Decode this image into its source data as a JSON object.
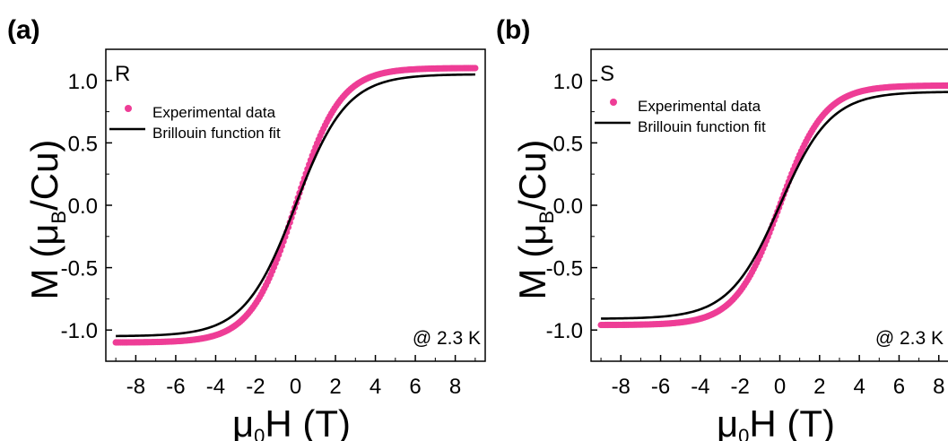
{
  "chart_data": [
    {
      "panel_label": "(a)",
      "sample": "R",
      "type": "line",
      "xlabel_prefix": "μ",
      "xlabel_sub": "0",
      "xlabel_suffix": "H (T)",
      "ylabel_prefix": "M (μ",
      "ylabel_sub": "B",
      "ylabel_suffix": "/Cu)",
      "xlim": [
        -9.5,
        9.5
      ],
      "ylim": [
        -1.25,
        1.25
      ],
      "xticks": [
        -8,
        -6,
        -4,
        -2,
        0,
        2,
        4,
        6,
        8
      ],
      "yticks": [
        -1.0,
        -0.5,
        0.0,
        0.5,
        1.0
      ],
      "annotation": "@ 2.3 K",
      "series": [
        {
          "name": "Experimental data",
          "style": "points",
          "color": "#ee3d96",
          "saturation": 1.1,
          "half_field": 2.0
        },
        {
          "name": "Brillouin function fit",
          "style": "line",
          "color": "#000000",
          "saturation": 1.05,
          "half_field": 2.3
        }
      ]
    },
    {
      "panel_label": "(b)",
      "sample": "S",
      "type": "line",
      "xlabel_prefix": "μ",
      "xlabel_sub": "0",
      "xlabel_suffix": "H (T)",
      "ylabel_prefix": "M (μ",
      "ylabel_sub": "B",
      "ylabel_suffix": "/Cu)",
      "xlim": [
        -9.5,
        9.5
      ],
      "ylim": [
        -1.25,
        1.25
      ],
      "xticks": [
        -8,
        -6,
        -4,
        -2,
        0,
        2,
        4,
        6,
        8
      ],
      "yticks": [
        -1.0,
        -0.5,
        0.0,
        0.5,
        1.0
      ],
      "annotation": "@ 2.3 K",
      "series": [
        {
          "name": "Experimental data",
          "style": "points",
          "color": "#ee3d96",
          "saturation": 0.96,
          "half_field": 2.0
        },
        {
          "name": "Brillouin function fit",
          "style": "line",
          "color": "#000000",
          "saturation": 0.91,
          "half_field": 2.3
        }
      ]
    }
  ]
}
